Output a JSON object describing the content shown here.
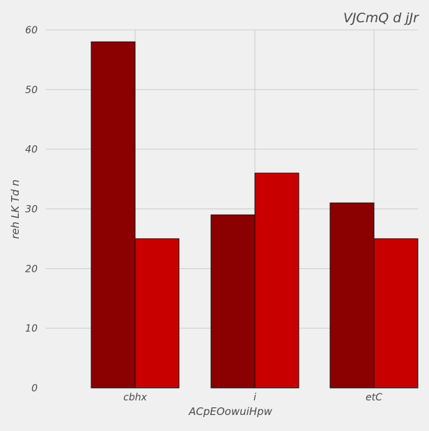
{
  "chart_data": {
    "type": "bar",
    "title": "VJCmQ d  jJr",
    "xlabel": "ACpEOowuiHpw",
    "ylabel": "reh LK Td n",
    "categories": [
      "cbhx",
      "i",
      "etC"
    ],
    "series": [
      {
        "values": [
          58,
          29,
          31
        ],
        "color": "#8b0000"
      },
      {
        "values": [
          25,
          36,
          25
        ],
        "color": "#c80000"
      }
    ],
    "ylim": [
      0,
      60
    ],
    "yticks": [
      0,
      10,
      20,
      30,
      40,
      50,
      60
    ],
    "grid": true,
    "background": "#f0f0f0"
  }
}
